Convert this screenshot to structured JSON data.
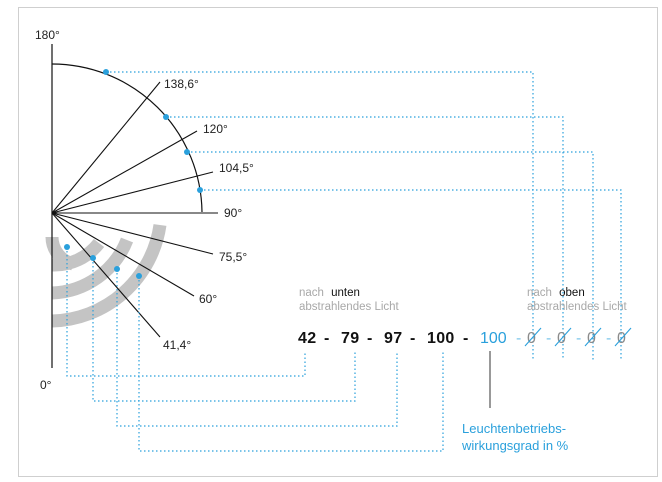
{
  "angles": {
    "a180": "180°",
    "a0": "0°",
    "a138": "138,6°",
    "a120": "120°",
    "a104": "104,5°",
    "a90": "90°",
    "a75": "75,5°",
    "a60": "60°",
    "a41": "41,4°"
  },
  "labels": {
    "down_prefix": "nach",
    "down_word": "unten",
    "down_line2": "abstrahlendes Licht",
    "up_prefix": "nach",
    "up_word": "oben",
    "up_line2": "abstrahlendes Licht"
  },
  "code": {
    "v1": "42",
    "v2": "79",
    "v3": "97",
    "v4": "100",
    "v5": "100",
    "sep": "-",
    "zero": "0"
  },
  "caption": {
    "line1": "Leuchtenbetriebs-",
    "line2": "wirkungsgrad in %"
  },
  "colors": {
    "accent": "#2aa0dc",
    "arc_grey": "#c4c4c4"
  }
}
